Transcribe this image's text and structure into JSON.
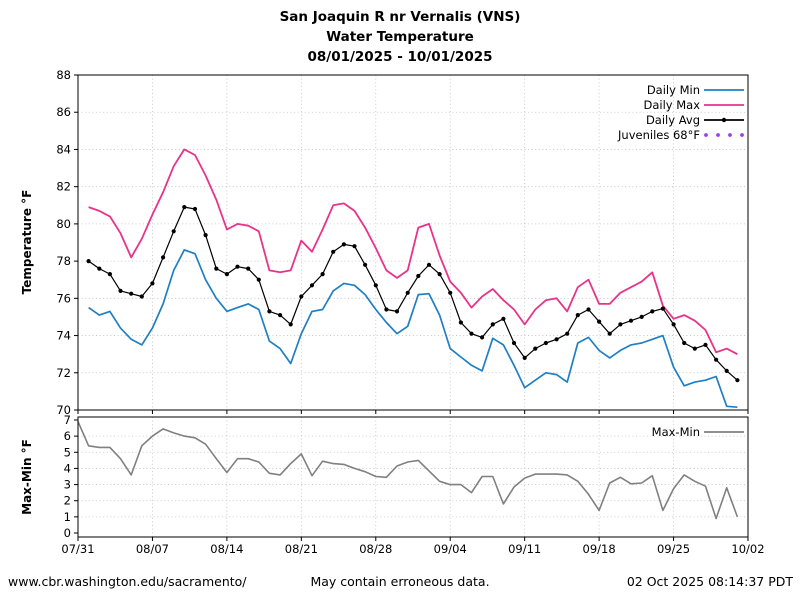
{
  "title": {
    "line1": "San Joaquin R nr Vernalis (VNS)",
    "line2": "Water Temperature",
    "line3": "08/01/2025 - 10/01/2025"
  },
  "footer": {
    "left": "www.cbr.washington.edu/sacramento/",
    "center": "May contain erroneous data.",
    "right": "02 Oct 2025 08:14:37 PDT"
  },
  "colors": {
    "daily_min": "#1f7fc4",
    "daily_max": "#e8338a",
    "daily_avg": "#000000",
    "juveniles": "#a03cf0",
    "max_min": "#808080",
    "grid": "#bfbfbf",
    "footer_left": "#8c8c8c",
    "footer_center": "#1a1a1a",
    "footer_right": "#3f5766"
  },
  "chart_data": [
    {
      "type": "line",
      "title_lines": [
        "San Joaquin R nr Vernalis (VNS)",
        "Water Temperature",
        "08/01/2025 - 10/01/2025"
      ],
      "ylabel": "Temperature °F",
      "xlabel": "",
      "ylim": [
        70,
        88
      ],
      "yticks": [
        70,
        72,
        74,
        76,
        78,
        80,
        82,
        84,
        86,
        88
      ],
      "xticklabels": [
        "07/31",
        "08/07",
        "08/14",
        "08/21",
        "08/28",
        "09/04",
        "09/11",
        "09/18",
        "09/25",
        "10/02"
      ],
      "grid": true,
      "legend_position": "upper right",
      "legend": [
        {
          "label": "Daily Min",
          "color": "#1f7fc4",
          "style": "line"
        },
        {
          "label": "Daily Max",
          "color": "#e8338a",
          "style": "line"
        },
        {
          "label": "Daily Avg",
          "color": "#000000",
          "style": "line-marker"
        },
        {
          "label": "Juveniles 68°F",
          "color": "#a03cf0",
          "style": "dots"
        }
      ],
      "juveniles_ref_f": 68,
      "dates": [
        "08/01",
        "08/02",
        "08/03",
        "08/04",
        "08/05",
        "08/06",
        "08/07",
        "08/08",
        "08/09",
        "08/10",
        "08/11",
        "08/12",
        "08/13",
        "08/14",
        "08/15",
        "08/16",
        "08/17",
        "08/18",
        "08/19",
        "08/20",
        "08/21",
        "08/22",
        "08/23",
        "08/24",
        "08/25",
        "08/26",
        "08/27",
        "08/28",
        "08/29",
        "08/30",
        "08/31",
        "09/01",
        "09/02",
        "09/03",
        "09/04",
        "09/05",
        "09/06",
        "09/07",
        "09/08",
        "09/09",
        "09/10",
        "09/11",
        "09/12",
        "09/13",
        "09/14",
        "09/15",
        "09/16",
        "09/17",
        "09/18",
        "09/19",
        "09/20",
        "09/21",
        "09/22",
        "09/23",
        "09/24",
        "09/25",
        "09/26",
        "09/27",
        "09/28",
        "09/29",
        "09/30",
        "10/01"
      ],
      "series": [
        {
          "name": "Daily Min",
          "key": "daily-min",
          "color": "#1f7fc4",
          "width": 1.7,
          "markers": false,
          "values": [
            75.5,
            75.1,
            75.3,
            74.4,
            73.8,
            73.5,
            74.4,
            75.7,
            77.5,
            78.6,
            78.4,
            77.0,
            76.0,
            75.3,
            75.5,
            75.7,
            75.4,
            73.7,
            73.3,
            72.5,
            74.1,
            75.3,
            75.4,
            76.4,
            76.8,
            76.7,
            76.2,
            75.4,
            74.7,
            74.1,
            74.5,
            76.2,
            76.25,
            75.1,
            73.3,
            72.85,
            72.4,
            72.1,
            73.85,
            73.5,
            72.4,
            71.2,
            71.6,
            72.0,
            71.9,
            71.5,
            73.6,
            73.9,
            73.2,
            72.8,
            73.2,
            73.5,
            73.6,
            73.8,
            74.0,
            72.3,
            71.3,
            71.5,
            71.6,
            71.8,
            70.2,
            70.15
          ]
        },
        {
          "name": "Daily Max",
          "key": "daily-max",
          "color": "#e8338a",
          "width": 1.8,
          "markers": false,
          "values": [
            80.9,
            80.7,
            80.4,
            79.5,
            78.2,
            79.2,
            80.5,
            81.7,
            83.1,
            84.0,
            83.7,
            82.6,
            81.3,
            79.7,
            80.0,
            79.9,
            79.6,
            77.5,
            77.4,
            77.5,
            79.1,
            78.5,
            79.7,
            81.0,
            81.1,
            80.7,
            79.8,
            78.7,
            77.5,
            77.1,
            77.5,
            79.8,
            80.0,
            78.3,
            76.9,
            76.3,
            75.5,
            76.1,
            76.5,
            75.9,
            75.4,
            74.6,
            75.4,
            75.9,
            76.0,
            75.3,
            76.6,
            77.0,
            75.7,
            75.7,
            76.3,
            76.6,
            76.9,
            77.4,
            75.6,
            74.9,
            75.1,
            74.8,
            74.3,
            73.1,
            73.3,
            73.0
          ]
        },
        {
          "name": "Daily Avg",
          "key": "daily-avg",
          "color": "#000000",
          "width": 1.2,
          "markers": true,
          "values": [
            78.0,
            77.6,
            77.3,
            76.4,
            76.25,
            76.1,
            76.8,
            78.2,
            79.6,
            80.9,
            80.8,
            79.4,
            77.6,
            77.3,
            77.7,
            77.6,
            77.0,
            75.3,
            75.1,
            74.6,
            76.1,
            76.7,
            77.3,
            78.5,
            78.9,
            78.8,
            77.8,
            76.7,
            75.4,
            75.3,
            76.3,
            77.2,
            77.8,
            77.3,
            76.3,
            74.7,
            74.1,
            73.9,
            74.6,
            74.9,
            73.6,
            72.8,
            73.3,
            73.6,
            73.8,
            74.1,
            75.1,
            75.4,
            74.75,
            74.1,
            74.6,
            74.8,
            75.0,
            75.3,
            75.45,
            74.6,
            73.6,
            73.3,
            73.5,
            72.7,
            72.1,
            71.6
          ]
        }
      ]
    },
    {
      "type": "line",
      "ylabel": "Max-Min °F",
      "ylim": [
        0,
        7
      ],
      "yticks": [
        0,
        1,
        2,
        3,
        4,
        5,
        6,
        7
      ],
      "grid": true,
      "legend_position": "upper right",
      "legend": [
        {
          "label": "Max-Min",
          "color": "#808080",
          "style": "line"
        }
      ],
      "dates": [
        "07/31",
        "08/01",
        "08/02",
        "08/03",
        "08/04",
        "08/05",
        "08/06",
        "08/07",
        "08/08",
        "08/09",
        "08/10",
        "08/11",
        "08/12",
        "08/13",
        "08/14",
        "08/15",
        "08/16",
        "08/17",
        "08/18",
        "08/19",
        "08/20",
        "08/21",
        "08/22",
        "08/23",
        "08/24",
        "08/25",
        "08/26",
        "08/27",
        "08/28",
        "08/29",
        "08/30",
        "08/31",
        "09/01",
        "09/02",
        "09/03",
        "09/04",
        "09/05",
        "09/06",
        "09/07",
        "09/08",
        "09/09",
        "09/10",
        "09/11",
        "09/12",
        "09/13",
        "09/14",
        "09/15",
        "09/16",
        "09/17",
        "09/18",
        "09/19",
        "09/20",
        "09/21",
        "09/22",
        "09/23",
        "09/24",
        "09/25",
        "09/26",
        "09/27",
        "09/28",
        "09/29",
        "09/30",
        "10/01"
      ],
      "series": [
        {
          "name": "Max-Min",
          "key": "max-min",
          "color": "#808080",
          "width": 1.6,
          "markers": false,
          "values": [
            6.9,
            5.4,
            5.3,
            5.3,
            4.6,
            3.6,
            5.4,
            6.0,
            6.45,
            6.2,
            6.0,
            5.9,
            5.5,
            4.6,
            3.75,
            4.6,
            4.6,
            4.4,
            3.7,
            3.6,
            4.3,
            4.9,
            3.55,
            4.45,
            4.3,
            4.25,
            4.0,
            3.8,
            3.5,
            3.45,
            4.15,
            4.4,
            4.5,
            3.85,
            3.2,
            3.0,
            3.0,
            2.5,
            3.5,
            3.5,
            1.8,
            2.85,
            3.4,
            3.65,
            3.65,
            3.65,
            3.6,
            3.2,
            2.4,
            1.4,
            3.1,
            3.45,
            3.05,
            3.1,
            3.55,
            1.4,
            2.75,
            3.6,
            3.2,
            2.9,
            0.9,
            2.8,
            1.0
          ]
        }
      ]
    }
  ]
}
